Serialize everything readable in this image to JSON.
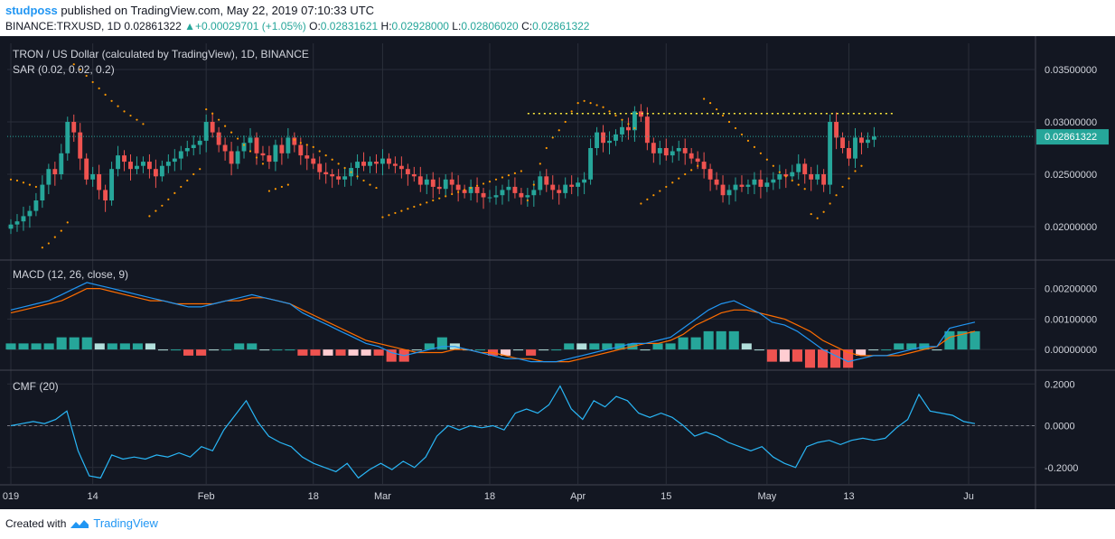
{
  "header": {
    "user": "studposs",
    "published": " published on TradingView.com, May 22, 2019 07:10:33 UTC",
    "symbol": "BINANCE:TRXUSD, 1D",
    "last": "0.02861322",
    "change": "+0.00029701 (+1.05%)",
    "o_label": "O:",
    "o": "0.02831621",
    "h_label": "H:",
    "h": "0.02928000",
    "l_label": "L:",
    "l": "0.02806020",
    "c_label": "C:",
    "c": "0.02861322"
  },
  "footer": {
    "created": "Created with",
    "brand": "TradingView"
  },
  "colors": {
    "bg": "#131722",
    "grid": "#2a2e39",
    "up": "#26a69a",
    "down": "#ef5350",
    "sar": "#ff9800",
    "macd": "#2196f3",
    "signal": "#ff6d00",
    "cmf": "#29b6f6",
    "resistance": "#ffeb3b",
    "price_tag": "#26a69a"
  },
  "chart_data": [
    {
      "type": "candlestick",
      "title": "TRON / US Dollar (calculated by TradingView), 1D, BINANCE",
      "indicator": "SAR (0.02, 0.02, 0.2)",
      "price_tag": "0.02861322",
      "last_price": 0.02861322,
      "ylim": [
        0.0175,
        0.0375
      ],
      "yticks": [
        0.02,
        0.025,
        0.03,
        0.035
      ],
      "ytick_labels": [
        "0.02000000",
        "0.02500000",
        "0.03000000",
        "0.03500000"
      ],
      "resistance_level": 0.0308,
      "resistance_range": [
        82,
        140
      ],
      "close": [
        0.0202,
        0.0205,
        0.021,
        0.0215,
        0.0225,
        0.024,
        0.0255,
        0.025,
        0.027,
        0.03,
        0.029,
        0.0265,
        0.0245,
        0.025,
        0.0235,
        0.0225,
        0.0255,
        0.0268,
        0.0262,
        0.0255,
        0.0258,
        0.0262,
        0.0255,
        0.0248,
        0.0258,
        0.0262,
        0.0265,
        0.0272,
        0.0275,
        0.0278,
        0.0282,
        0.03,
        0.029,
        0.0278,
        0.0272,
        0.026,
        0.0272,
        0.028,
        0.0285,
        0.027,
        0.0268,
        0.0262,
        0.0278,
        0.027,
        0.0285,
        0.0278,
        0.0268,
        0.0265,
        0.026,
        0.0252,
        0.025,
        0.0248,
        0.0245,
        0.0248,
        0.0256,
        0.0262,
        0.0258,
        0.0262,
        0.026,
        0.0265,
        0.026,
        0.0258,
        0.0255,
        0.025,
        0.0248,
        0.024,
        0.0245,
        0.0238,
        0.0236,
        0.0245,
        0.024,
        0.0235,
        0.0232,
        0.0238,
        0.0232,
        0.0228,
        0.0228,
        0.023,
        0.0235,
        0.0238,
        0.0232,
        0.0228,
        0.023,
        0.0235,
        0.0248,
        0.024,
        0.0235,
        0.0232,
        0.024,
        0.0238,
        0.0242,
        0.0245,
        0.0275,
        0.029,
        0.028,
        0.0282,
        0.0288,
        0.0295,
        0.0292,
        0.031,
        0.0305,
        0.028,
        0.027,
        0.0275,
        0.0268,
        0.0272,
        0.0275,
        0.027,
        0.0265,
        0.0262,
        0.0255,
        0.0245,
        0.024,
        0.023,
        0.0235,
        0.024,
        0.0238,
        0.024,
        0.0245,
        0.0238,
        0.0242,
        0.0245,
        0.025,
        0.0248,
        0.0252,
        0.026,
        0.025,
        0.0245,
        0.025,
        0.024,
        0.03,
        0.0285,
        0.0275,
        0.0265,
        0.0285,
        0.028,
        0.0283,
        0.0286
      ],
      "sar": [
        0.0245,
        0.0244,
        0.0242,
        0.024,
        0.0238,
        0.018,
        0.0184,
        0.019,
        0.0196,
        0.0204,
        0.0355,
        0.035,
        0.0344,
        0.0338,
        0.0332,
        0.0326,
        0.032,
        0.0315,
        0.031,
        0.0306,
        0.0302,
        0.0298,
        0.021,
        0.0215,
        0.022,
        0.0226,
        0.0232,
        0.0238,
        0.0244,
        0.025,
        0.0255,
        0.0312,
        0.0308,
        0.0302,
        0.0296,
        0.029,
        0.0284,
        0.0278,
        0.0272,
        0.0266,
        0.026,
        0.0234,
        0.0236,
        0.0238,
        0.024,
        0.0283,
        0.028,
        0.0278,
        0.0276,
        0.0272,
        0.0268,
        0.0264,
        0.026,
        0.0256,
        0.0252,
        0.0248,
        0.0244,
        0.024,
        0.0237,
        0.0209,
        0.0211,
        0.0213,
        0.0215,
        0.0217,
        0.0219,
        0.0221,
        0.0223,
        0.0225,
        0.0227,
        0.0229,
        0.0231,
        0.0233,
        0.0235,
        0.0237,
        0.0239,
        0.0241,
        0.0243,
        0.0245,
        0.0247,
        0.0249,
        0.0251,
        0.0253,
        0.0225,
        0.024,
        0.026,
        0.0275,
        0.0285,
        0.0292,
        0.03,
        0.031,
        0.0318,
        0.032,
        0.0318,
        0.0316,
        0.0314,
        0.031,
        0.0306,
        0.0302,
        0.0298,
        0.0294,
        0.0222,
        0.0226,
        0.023,
        0.0234,
        0.0238,
        0.0242,
        0.0246,
        0.025,
        0.0254,
        0.0258,
        0.0322,
        0.0318,
        0.0312,
        0.0306,
        0.03,
        0.0294,
        0.0288,
        0.0282,
        0.0276,
        0.027,
        0.0264,
        0.0258,
        0.0252,
        0.0248,
        0.0244,
        0.024,
        0.0236,
        0.0212,
        0.0208,
        0.0214,
        0.0222,
        0.023,
        0.0238,
        0.0246,
        0.0253,
        0.0258
      ]
    },
    {
      "type": "line",
      "title": "MACD (12, 26, close, 9)",
      "ylim": [
        -0.0005,
        0.0027
      ],
      "yticks": [
        0.0,
        0.001,
        0.002
      ],
      "ytick_labels": [
        "0.00000000",
        "0.00100000",
        "0.00200000"
      ],
      "macd": [
        0.0013,
        0.0014,
        0.0015,
        0.0016,
        0.0018,
        0.002,
        0.0022,
        0.0021,
        0.002,
        0.0019,
        0.0018,
        0.0017,
        0.0016,
        0.0015,
        0.0014,
        0.0014,
        0.0015,
        0.0016,
        0.0017,
        0.0018,
        0.0017,
        0.0016,
        0.0015,
        0.0012,
        0.001,
        0.0008,
        0.0006,
        0.0004,
        0.0002,
        0.0001,
        -0.0001,
        -0.0002,
        -0.0001,
        0.0,
        0.0001,
        0.0001,
        0.0,
        -0.0001,
        -0.0002,
        -0.0003,
        -0.0003,
        -0.0004,
        -0.0004,
        -0.0004,
        -0.0003,
        -0.0002,
        -0.0001,
        0.0,
        0.0001,
        0.0002,
        0.0002,
        0.0003,
        0.0004,
        0.0007,
        0.001,
        0.0013,
        0.0015,
        0.0016,
        0.0014,
        0.0012,
        0.0009,
        0.0008,
        0.0006,
        0.0003,
        0.0,
        -0.0002,
        -0.0004,
        -0.0003,
        -0.0002,
        -0.0002,
        -0.0001,
        0.0,
        0.0001,
        0.0001,
        0.0007,
        0.0008,
        0.0009
      ],
      "signal": [
        0.0012,
        0.0013,
        0.0014,
        0.0015,
        0.0016,
        0.0018,
        0.002,
        0.002,
        0.0019,
        0.0018,
        0.0017,
        0.0016,
        0.0016,
        0.0015,
        0.0015,
        0.0015,
        0.0015,
        0.0016,
        0.0016,
        0.0017,
        0.0017,
        0.0016,
        0.0015,
        0.0013,
        0.0011,
        0.0009,
        0.0007,
        0.0005,
        0.0003,
        0.0002,
        0.0001,
        0.0,
        -0.0001,
        -0.0001,
        -0.0001,
        0.0,
        0.0,
        -0.0001,
        -0.0001,
        -0.0002,
        -0.0003,
        -0.0003,
        -0.0004,
        -0.0004,
        -0.0004,
        -0.0003,
        -0.0002,
        -0.0001,
        0.0,
        0.0001,
        0.0002,
        0.0002,
        0.0003,
        0.0005,
        0.0008,
        0.001,
        0.0012,
        0.0013,
        0.0013,
        0.0012,
        0.0011,
        0.001,
        0.0008,
        0.0006,
        0.0003,
        0.0001,
        -0.0001,
        -0.0002,
        -0.0002,
        -0.0002,
        -0.0002,
        -0.0001,
        0.0,
        0.0001,
        0.0004,
        0.0005,
        0.0006
      ]
    },
    {
      "type": "line",
      "title": "CMF (20)",
      "ylim": [
        -0.27,
        0.24
      ],
      "yticks": [
        -0.2,
        0.0,
        0.2
      ],
      "ytick_labels": [
        "-0.2000",
        "0.0000",
        "0.2000"
      ],
      "values": [
        0.0,
        0.01,
        0.02,
        0.01,
        0.03,
        0.07,
        -0.12,
        -0.24,
        -0.25,
        -0.14,
        -0.16,
        -0.15,
        -0.16,
        -0.14,
        -0.15,
        -0.13,
        -0.15,
        -0.1,
        -0.12,
        -0.02,
        0.05,
        0.12,
        0.02,
        -0.05,
        -0.08,
        -0.1,
        -0.15,
        -0.18,
        -0.2,
        -0.22,
        -0.18,
        -0.25,
        -0.21,
        -0.18,
        -0.21,
        -0.17,
        -0.2,
        -0.15,
        -0.05,
        0.0,
        -0.02,
        0.0,
        -0.01,
        0.0,
        -0.02,
        0.06,
        0.08,
        0.06,
        0.1,
        0.19,
        0.08,
        0.03,
        0.12,
        0.09,
        0.14,
        0.12,
        0.06,
        0.04,
        0.06,
        0.04,
        0.0,
        -0.05,
        -0.03,
        -0.05,
        -0.08,
        -0.1,
        -0.12,
        -0.1,
        -0.15,
        -0.18,
        -0.2,
        -0.1,
        -0.08,
        -0.07,
        -0.09,
        -0.07,
        -0.06,
        -0.07,
        -0.06,
        -0.01,
        0.03,
        0.15,
        0.07,
        0.06,
        0.05,
        0.02,
        0.01
      ]
    }
  ],
  "x_axis": {
    "ticks": [
      {
        "label": "019",
        "index": 0
      },
      {
        "label": "14",
        "index": 13
      },
      {
        "label": "Feb",
        "index": 31
      },
      {
        "label": "18",
        "index": 48
      },
      {
        "label": "Mar",
        "index": 59
      },
      {
        "label": "18",
        "index": 76
      },
      {
        "label": "Apr",
        "index": 90
      },
      {
        "label": "15",
        "index": 104
      },
      {
        "label": "May",
        "index": 120
      },
      {
        "label": "13",
        "index": 133
      },
      {
        "label": "Ju",
        "index": 152
      }
    ]
  }
}
